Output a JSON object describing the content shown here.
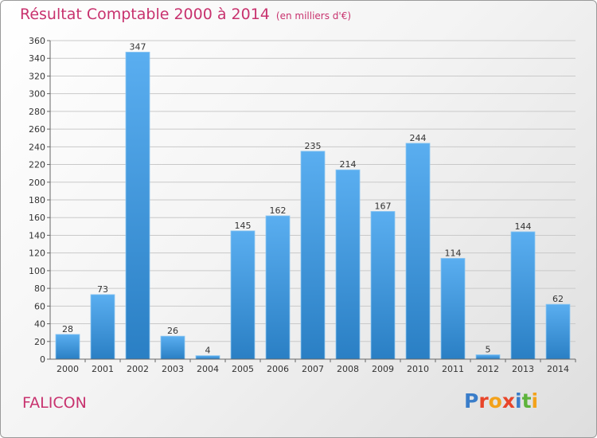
{
  "header": {
    "title": "Résultat Comptable 2000 à 2014",
    "subtitle": "(en milliers d'€)"
  },
  "footer": {
    "place": "FALICON",
    "logo": "Proxiti",
    "logo_colors": [
      "#3a7dc9",
      "#e8452a",
      "#f3a21b",
      "#e8452a",
      "#3a7dc9",
      "#5db33b",
      "#f3a21b"
    ]
  },
  "colors": {
    "bar_top": "#5aaef0",
    "bar_bottom": "#2a7fc4",
    "text_accent": "#c8326e"
  },
  "chart_data": {
    "type": "bar",
    "categories": [
      "2000",
      "2001",
      "2002",
      "2003",
      "2004",
      "2005",
      "2006",
      "2007",
      "2008",
      "2009",
      "2010",
      "2011",
      "2012",
      "2013",
      "2014"
    ],
    "values": [
      28,
      73,
      347,
      26,
      4,
      145,
      162,
      235,
      214,
      167,
      244,
      114,
      5,
      144,
      62
    ],
    "ylim": [
      0,
      360
    ],
    "yticks": [
      0,
      20,
      40,
      60,
      80,
      100,
      120,
      140,
      160,
      180,
      200,
      220,
      240,
      260,
      280,
      300,
      320,
      340,
      360
    ],
    "grid": true,
    "legend": "none"
  }
}
